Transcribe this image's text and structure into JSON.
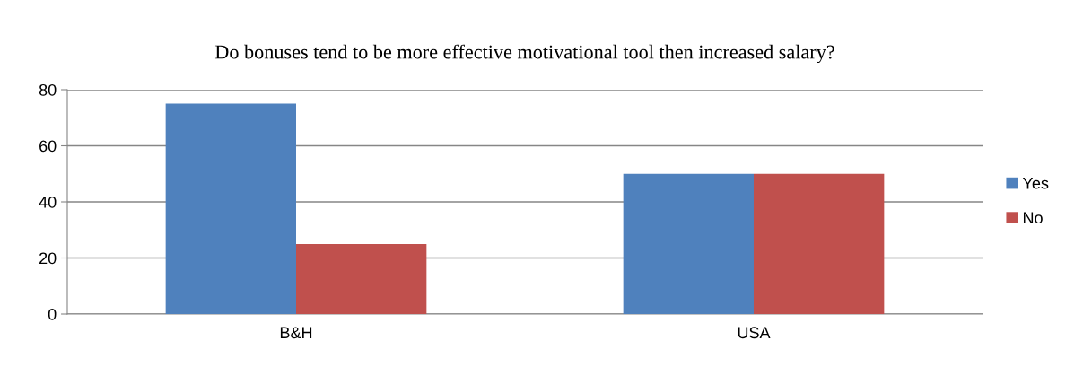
{
  "chart_data": {
    "type": "bar",
    "title": "Do bonuses tend to be more effective motivational tool then increased salary?",
    "categories": [
      "B&H",
      "USA"
    ],
    "series": [
      {
        "name": "Yes",
        "color": "#4f81bd",
        "values": [
          75,
          50
        ]
      },
      {
        "name": "No",
        "color": "#c0504d",
        "values": [
          25,
          50
        ]
      }
    ],
    "ylim": [
      0,
      80
    ],
    "yticks": [
      0,
      20,
      40,
      60,
      80
    ],
    "grid": "y",
    "legend": "right"
  }
}
